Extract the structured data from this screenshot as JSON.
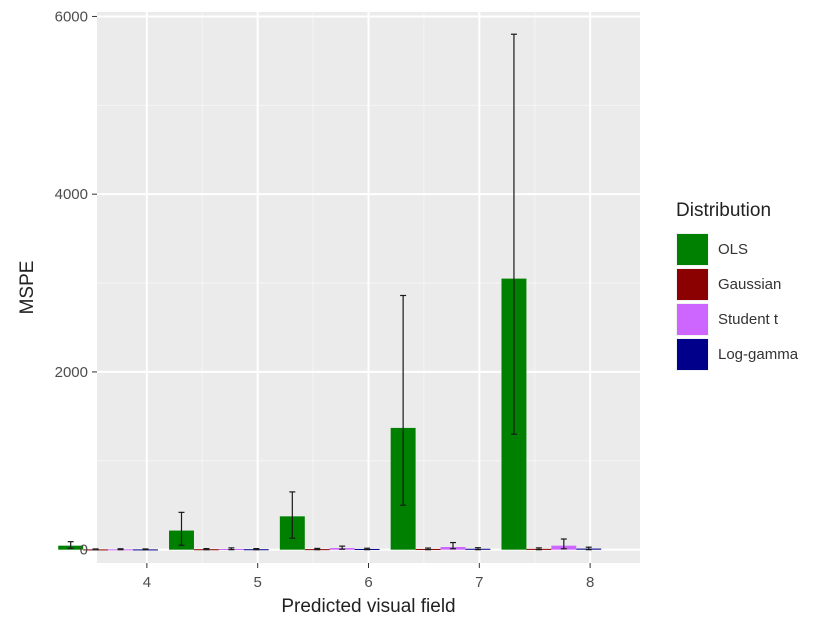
{
  "chart_data": {
    "type": "bar",
    "title": "",
    "xlabel": "Predicted visual field",
    "ylabel": "MSPE",
    "categories": [
      "4",
      "5",
      "6",
      "7",
      "8"
    ],
    "ylim": [
      -150,
      6050
    ],
    "yticks": [
      0,
      2000,
      4000,
      6000
    ],
    "grid": true,
    "legend": {
      "title": "Distribution",
      "placement": "right"
    },
    "series": [
      {
        "name": "OLS",
        "color": "#008000",
        "values": [
          45,
          215,
          375,
          1370,
          3050
        ],
        "err_low": [
          15,
          50,
          130,
          500,
          1300
        ],
        "err_high": [
          90,
          420,
          650,
          2860,
          5800
        ]
      },
      {
        "name": "Gaussian",
        "color": "#8b0000",
        "values": [
          3,
          5,
          6,
          8,
          9
        ],
        "err_low": [
          0,
          0,
          0,
          0,
          0
        ],
        "err_high": [
          8,
          12,
          14,
          18,
          20
        ]
      },
      {
        "name": "Student t",
        "color": "#cc66ff",
        "values": [
          4,
          8,
          18,
          30,
          45
        ],
        "err_low": [
          0,
          0,
          5,
          10,
          10
        ],
        "err_high": [
          10,
          20,
          40,
          80,
          120
        ]
      },
      {
        "name": "Log-gamma",
        "color": "#00008b",
        "values": [
          3,
          5,
          8,
          10,
          12
        ],
        "err_low": [
          0,
          0,
          0,
          0,
          0
        ],
        "err_high": [
          8,
          12,
          16,
          22,
          28
        ]
      }
    ]
  }
}
